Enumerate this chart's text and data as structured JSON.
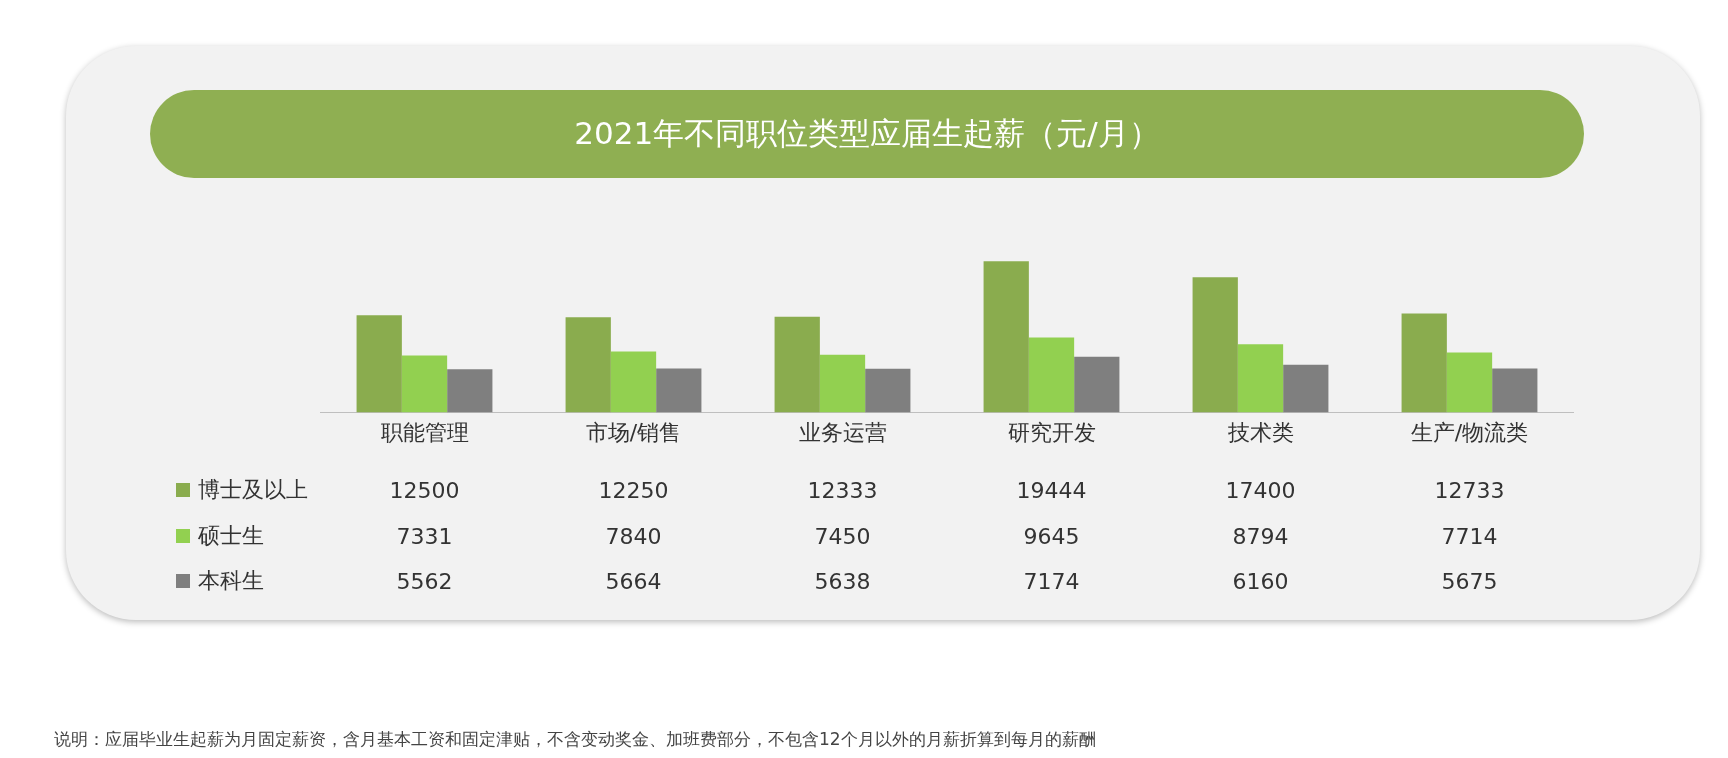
{
  "chart_data": {
    "type": "bar",
    "title": "2021年不同职位类型应届生起薪（元/月）",
    "categories": [
      "职能管理",
      "市场/销售",
      "业务运营",
      "研究开发",
      "技术类",
      "生产/物流类"
    ],
    "series": [
      {
        "name": "博士及以上",
        "color": "#8aac4e",
        "values": [
          12500,
          12250,
          12333,
          19444,
          17400,
          12733
        ]
      },
      {
        "name": "硕士生",
        "color": "#92d050",
        "values": [
          7331,
          7840,
          7450,
          9645,
          8794,
          7714
        ]
      },
      {
        "name": "本科生",
        "color": "#7f7f7f",
        "values": [
          5562,
          5664,
          5638,
          7174,
          6160,
          5675
        ]
      }
    ],
    "data_labels": true,
    "legend": "bottom left",
    "grid": false,
    "tick_labels": "x",
    "annotations": [
      "说明：应届毕业生起薪为月固定薪资，含月基本工资和固定津贴，不含变动奖金、加班费部分，不包含12个月以外的月薪折算到每月的薪酬"
    ]
  }
}
